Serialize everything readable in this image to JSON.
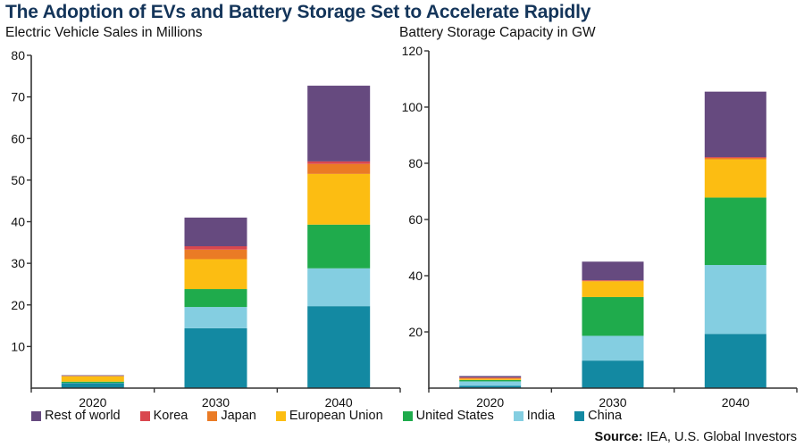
{
  "title": "The Adoption of EVs and Battery Storage Set to Accelerate Rapidly",
  "source_label": "Source:",
  "source_text": "IEA, U.S. Global Investors",
  "legend": [
    {
      "name": "Rest of world",
      "color": "#664a7f"
    },
    {
      "name": "Korea",
      "color": "#d9474f"
    },
    {
      "name": "Japan",
      "color": "#ea7b25"
    },
    {
      "name": "European Union",
      "color": "#fcbd12"
    },
    {
      "name": "United States",
      "color": "#1fab4c"
    },
    {
      "name": "India",
      "color": "#84cee1"
    },
    {
      "name": "China",
      "color": "#1389a2"
    }
  ],
  "chart_data": [
    {
      "type": "bar",
      "stacked": true,
      "title": "Electric Vehicle Sales in Millions",
      "xlabel": "",
      "ylabel": "",
      "categories": [
        "2020",
        "2030",
        "2040"
      ],
      "ylim": [
        0,
        80
      ],
      "yticks": [
        10,
        20,
        30,
        40,
        50,
        60,
        70,
        80
      ],
      "grid": false,
      "series": [
        {
          "name": "China",
          "values": [
            1.2,
            14.4,
            19.7
          ]
        },
        {
          "name": "India",
          "values": [
            0.05,
            5.1,
            9.1
          ]
        },
        {
          "name": "United States",
          "values": [
            0.3,
            4.3,
            10.5
          ]
        },
        {
          "name": "European Union",
          "values": [
            1.3,
            7.2,
            12.2
          ]
        },
        {
          "name": "Japan",
          "values": [
            0.05,
            2.3,
            2.4
          ]
        },
        {
          "name": "Korea",
          "values": [
            0.05,
            0.8,
            0.6
          ]
        },
        {
          "name": "Rest of world",
          "values": [
            0.15,
            6.9,
            18.2
          ]
        }
      ]
    },
    {
      "type": "bar",
      "stacked": true,
      "title": "Battery Storage Capacity in GW",
      "xlabel": "",
      "ylabel": "",
      "categories": [
        "2020",
        "2030",
        "2040"
      ],
      "ylim": [
        0,
        120
      ],
      "yticks": [
        20,
        40,
        60,
        80,
        100,
        120
      ],
      "grid": false,
      "series": [
        {
          "name": "China",
          "values": [
            0.8,
            9.8,
            19.3
          ]
        },
        {
          "name": "India",
          "values": [
            1.6,
            8.8,
            24.5
          ]
        },
        {
          "name": "United States",
          "values": [
            0.5,
            13.8,
            24.0
          ]
        },
        {
          "name": "European Union",
          "values": [
            0.4,
            5.6,
            13.6
          ]
        },
        {
          "name": "Japan",
          "values": [
            0.3,
            0.2,
            0.5
          ]
        },
        {
          "name": "Korea",
          "values": [
            0.2,
            0.2,
            0.3
          ]
        },
        {
          "name": "Rest of world",
          "values": [
            0.5,
            6.6,
            23.3
          ]
        }
      ]
    }
  ]
}
